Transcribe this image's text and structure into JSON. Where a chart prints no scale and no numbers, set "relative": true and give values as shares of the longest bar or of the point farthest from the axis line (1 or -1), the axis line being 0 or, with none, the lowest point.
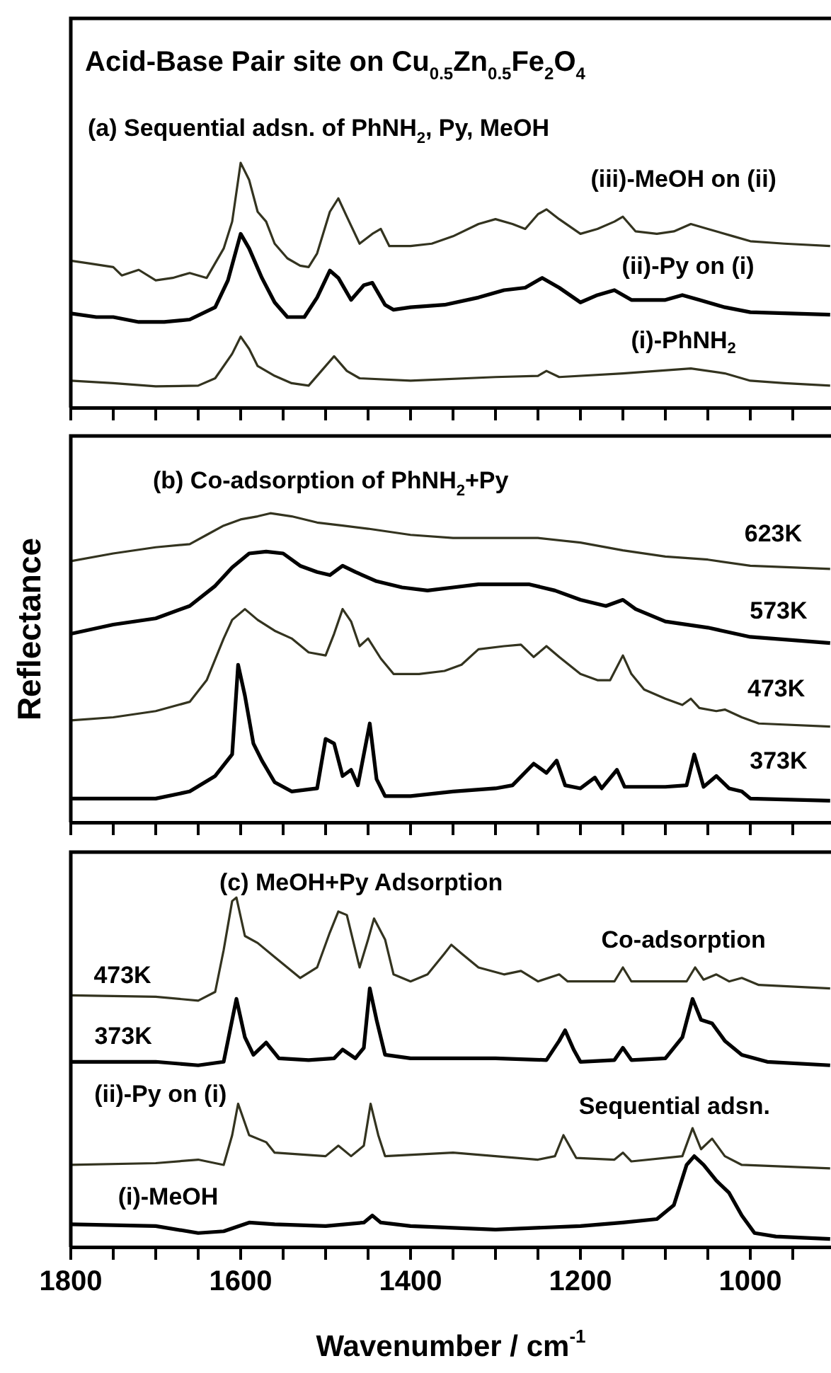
{
  "chart_data": [
    {
      "type": "line",
      "title": "Acid-Base Pair site on Cu$_{0.5}$Zn$_{0.5}$Fe$_{2}$O$_{4}$",
      "subtitle": "(a) Sequential adsn. of PhNH$_{2}$, Py, MeOH",
      "relative": true,
      "tick_labels": false,
      "xlim": [
        1800,
        905
      ],
      "xticks": [
        {
          "value": 1800,
          "label": null
        },
        {
          "value": 1750,
          "label": null
        },
        {
          "value": 1700,
          "label": null
        },
        {
          "value": 1650,
          "label": null
        },
        {
          "value": 1600,
          "label": null
        },
        {
          "value": 1550,
          "label": null
        },
        {
          "value": 1500,
          "label": null
        },
        {
          "value": 1450,
          "label": null
        },
        {
          "value": 1400,
          "label": null
        },
        {
          "value": 1350,
          "label": null
        },
        {
          "value": 1300,
          "label": null
        },
        {
          "value": 1250,
          "label": null
        },
        {
          "value": 1200,
          "label": null
        },
        {
          "value": 1150,
          "label": null
        },
        {
          "value": 1100,
          "label": null
        },
        {
          "value": 1050,
          "label": null
        },
        {
          "value": 1000,
          "label": null
        },
        {
          "value": 950,
          "label": null
        }
      ],
      "series": [
        {
          "name": "(iii)-MeOH on (ii)",
          "color": "#33331f",
          "x": [
            1800,
            1780,
            1750,
            1740,
            1720,
            1700,
            1680,
            1660,
            1640,
            1620,
            1610,
            1600,
            1590,
            1580,
            1570,
            1560,
            1545,
            1530,
            1520,
            1510,
            1495,
            1485,
            1475,
            1460,
            1445,
            1435,
            1425,
            1400,
            1375,
            1350,
            1320,
            1300,
            1280,
            1265,
            1250,
            1240,
            1225,
            1200,
            1180,
            1160,
            1150,
            1135,
            1110,
            1090,
            1070,
            1050,
            1020,
            1000,
            960,
            906
          ],
          "values": [
            0.6,
            0.59,
            0.574,
            0.54,
            0.563,
            0.52,
            0.53,
            0.55,
            0.53,
            0.65,
            0.76,
            1.0,
            0.93,
            0.8,
            0.76,
            0.67,
            0.61,
            0.58,
            0.574,
            0.63,
            0.8,
            0.855,
            0.78,
            0.67,
            0.71,
            0.73,
            0.66,
            0.66,
            0.67,
            0.7,
            0.75,
            0.77,
            0.75,
            0.73,
            0.79,
            0.81,
            0.77,
            0.71,
            0.73,
            0.76,
            0.78,
            0.72,
            0.71,
            0.72,
            0.75,
            0.73,
            0.7,
            0.68,
            0.67,
            0.66
          ]
        },
        {
          "name": "(ii)-Py on (i)",
          "color": "#000000",
          "x": [
            1800,
            1770,
            1750,
            1720,
            1690,
            1660,
            1630,
            1615,
            1600,
            1590,
            1575,
            1560,
            1545,
            1525,
            1510,
            1495,
            1485,
            1470,
            1455,
            1445,
            1430,
            1420,
            1400,
            1360,
            1320,
            1290,
            1265,
            1245,
            1225,
            1200,
            1180,
            1160,
            1140,
            1100,
            1080,
            1060,
            1030,
            1000,
            906
          ],
          "values": [
            0.385,
            0.37,
            0.37,
            0.35,
            0.35,
            0.36,
            0.41,
            0.52,
            0.71,
            0.65,
            0.53,
            0.43,
            0.37,
            0.37,
            0.45,
            0.56,
            0.53,
            0.44,
            0.5,
            0.51,
            0.42,
            0.4,
            0.41,
            0.42,
            0.45,
            0.48,
            0.49,
            0.53,
            0.49,
            0.43,
            0.46,
            0.48,
            0.44,
            0.44,
            0.46,
            0.44,
            0.41,
            0.39,
            0.38
          ]
        },
        {
          "name": "(i)-PhNH$_{2}$",
          "color": "#33331f",
          "x": [
            1800,
            1750,
            1700,
            1650,
            1630,
            1610,
            1600,
            1590,
            1580,
            1560,
            1540,
            1520,
            1505,
            1490,
            1475,
            1460,
            1400,
            1300,
            1250,
            1240,
            1225,
            1150,
            1070,
            1030,
            1000,
            960,
            906
          ],
          "values": [
            0.11,
            0.1,
            0.087,
            0.09,
            0.12,
            0.22,
            0.29,
            0.24,
            0.17,
            0.13,
            0.1,
            0.09,
            0.15,
            0.21,
            0.15,
            0.12,
            0.11,
            0.125,
            0.13,
            0.15,
            0.125,
            0.14,
            0.16,
            0.14,
            0.11,
            0.1,
            0.09
          ]
        }
      ],
      "legend": false
    },
    {
      "type": "line",
      "title": "(b) Co-adsorption of PhNH$_{2}$+Py",
      "ylabel": "Reflectance",
      "relative": true,
      "tick_labels": false,
      "xlim": [
        1800,
        905
      ],
      "xticks": [
        {
          "value": 1800,
          "label": null
        },
        {
          "value": 1750,
          "label": null
        },
        {
          "value": 1700,
          "label": null
        },
        {
          "value": 1650,
          "label": null
        },
        {
          "value": 1600,
          "label": null
        },
        {
          "value": 1550,
          "label": null
        },
        {
          "value": 1500,
          "label": null
        },
        {
          "value": 1450,
          "label": null
        },
        {
          "value": 1400,
          "label": null
        },
        {
          "value": 1350,
          "label": null
        },
        {
          "value": 1300,
          "label": null
        },
        {
          "value": 1250,
          "label": null
        },
        {
          "value": 1200,
          "label": null
        },
        {
          "value": 1150,
          "label": null
        },
        {
          "value": 1100,
          "label": null
        },
        {
          "value": 1050,
          "label": null
        },
        {
          "value": 1000,
          "label": null
        },
        {
          "value": 950,
          "label": null
        }
      ],
      "series": [
        {
          "name": "623K",
          "color": "#33331f",
          "x": [
            1800,
            1750,
            1700,
            1660,
            1640,
            1620,
            1600,
            1580,
            1565,
            1540,
            1510,
            1480,
            1450,
            1400,
            1350,
            1300,
            1250,
            1200,
            1150,
            1100,
            1050,
            1000,
            906
          ],
          "values": [
            0.845,
            0.87,
            0.89,
            0.9,
            0.93,
            0.96,
            0.98,
            0.99,
            1.0,
            0.99,
            0.97,
            0.96,
            0.95,
            0.93,
            0.92,
            0.92,
            0.92,
            0.905,
            0.88,
            0.86,
            0.85,
            0.83,
            0.82
          ]
        },
        {
          "name": "573K",
          "color": "#000000",
          "x": [
            1800,
            1750,
            1700,
            1660,
            1630,
            1610,
            1590,
            1570,
            1550,
            1530,
            1510,
            1495,
            1480,
            1465,
            1440,
            1410,
            1380,
            1350,
            1320,
            1290,
            1260,
            1230,
            1200,
            1170,
            1150,
            1135,
            1100,
            1050,
            1000,
            906
          ],
          "values": [
            0.61,
            0.64,
            0.66,
            0.7,
            0.765,
            0.825,
            0.87,
            0.876,
            0.87,
            0.83,
            0.81,
            0.8,
            0.83,
            0.81,
            0.78,
            0.76,
            0.75,
            0.76,
            0.77,
            0.77,
            0.77,
            0.75,
            0.72,
            0.7,
            0.72,
            0.69,
            0.65,
            0.63,
            0.6,
            0.58
          ]
        },
        {
          "name": "473K",
          "color": "#33331f",
          "x": [
            1800,
            1750,
            1700,
            1660,
            1640,
            1620,
            1610,
            1595,
            1580,
            1560,
            1540,
            1520,
            1500,
            1490,
            1480,
            1470,
            1460,
            1450,
            1435,
            1420,
            1390,
            1360,
            1340,
            1320,
            1290,
            1270,
            1255,
            1240,
            1225,
            1200,
            1180,
            1165,
            1150,
            1140,
            1125,
            1100,
            1080,
            1070,
            1060,
            1040,
            1030,
            1010,
            990,
            906
          ],
          "values": [
            0.33,
            0.34,
            0.36,
            0.39,
            0.46,
            0.595,
            0.655,
            0.69,
            0.655,
            0.62,
            0.595,
            0.55,
            0.54,
            0.61,
            0.69,
            0.65,
            0.57,
            0.595,
            0.53,
            0.48,
            0.48,
            0.49,
            0.51,
            0.56,
            0.57,
            0.575,
            0.535,
            0.57,
            0.535,
            0.48,
            0.46,
            0.46,
            0.54,
            0.48,
            0.43,
            0.4,
            0.38,
            0.4,
            0.37,
            0.36,
            0.365,
            0.34,
            0.32,
            0.31
          ]
        },
        {
          "name": "373K",
          "color": "#000000",
          "x": [
            1800,
            1700,
            1660,
            1630,
            1610,
            1603,
            1595,
            1585,
            1575,
            1560,
            1540,
            1510,
            1500,
            1490,
            1480,
            1470,
            1462,
            1448,
            1440,
            1430,
            1400,
            1350,
            1300,
            1280,
            1255,
            1240,
            1228,
            1218,
            1200,
            1183,
            1175,
            1157,
            1148,
            1100,
            1075,
            1066,
            1055,
            1040,
            1025,
            1010,
            1000,
            906
          ],
          "values": [
            0.077,
            0.077,
            0.1,
            0.15,
            0.22,
            0.51,
            0.41,
            0.255,
            0.2,
            0.13,
            0.1,
            0.11,
            0.27,
            0.255,
            0.15,
            0.17,
            0.12,
            0.32,
            0.14,
            0.085,
            0.085,
            0.1,
            0.11,
            0.12,
            0.19,
            0.16,
            0.2,
            0.12,
            0.11,
            0.145,
            0.11,
            0.17,
            0.115,
            0.115,
            0.12,
            0.22,
            0.115,
            0.15,
            0.11,
            0.1,
            0.077,
            0.07
          ]
        }
      ],
      "legend": false
    },
    {
      "type": "line",
      "title": "(c) MeOH+Py Adsorption",
      "xlabel": "Wavenumber / cm$^{-1}$",
      "relative": true,
      "tick_labels": "x",
      "xlim": [
        1800,
        905
      ],
      "xticks": [
        1800,
        {
          "value": 1750,
          "label": null
        },
        {
          "value": 1700,
          "label": null
        },
        {
          "value": 1650,
          "label": null
        },
        1600,
        {
          "value": 1550,
          "label": null
        },
        {
          "value": 1500,
          "label": null
        },
        {
          "value": 1450,
          "label": null
        },
        1400,
        {
          "value": 1350,
          "label": null
        },
        {
          "value": 1300,
          "label": null
        },
        {
          "value": 1250,
          "label": null
        },
        1200,
        {
          "value": 1150,
          "label": null
        },
        {
          "value": 1100,
          "label": null
        },
        {
          "value": 1050,
          "label": null
        },
        1000,
        {
          "value": 950,
          "label": null
        }
      ],
      "series": [
        {
          "name": "473K",
          "color": "#33331f",
          "x": [
            1800,
            1700,
            1650,
            1630,
            1620,
            1610,
            1605,
            1595,
            1580,
            1560,
            1545,
            1530,
            1510,
            1495,
            1485,
            1475,
            1460,
            1450,
            1443,
            1430,
            1420,
            1400,
            1380,
            1360,
            1352,
            1340,
            1320,
            1290,
            1270,
            1250,
            1225,
            1215,
            1160,
            1150,
            1140,
            1075,
            1065,
            1055,
            1040,
            1025,
            1010,
            990,
            906
          ],
          "values": [
            0.72,
            0.716,
            0.705,
            0.73,
            0.85,
            0.99,
            1.0,
            0.89,
            0.87,
            0.83,
            0.8,
            0.77,
            0.8,
            0.9,
            0.96,
            0.95,
            0.8,
            0.88,
            0.94,
            0.88,
            0.78,
            0.76,
            0.78,
            0.84,
            0.865,
            0.84,
            0.8,
            0.78,
            0.79,
            0.76,
            0.78,
            0.76,
            0.76,
            0.8,
            0.76,
            0.76,
            0.8,
            0.765,
            0.78,
            0.76,
            0.77,
            0.75,
            0.74
          ]
        },
        {
          "name": "373K",
          "color": "#000000",
          "x": [
            1800,
            1700,
            1650,
            1620,
            1610,
            1605,
            1595,
            1585,
            1570,
            1555,
            1520,
            1490,
            1480,
            1465,
            1455,
            1448,
            1440,
            1430,
            1400,
            1300,
            1240,
            1225,
            1218,
            1208,
            1200,
            1160,
            1150,
            1140,
            1100,
            1080,
            1068,
            1058,
            1045,
            1030,
            1010,
            980,
            906
          ],
          "values": [
            0.53,
            0.53,
            0.52,
            0.53,
            0.65,
            0.71,
            0.6,
            0.55,
            0.585,
            0.54,
            0.535,
            0.54,
            0.565,
            0.54,
            0.57,
            0.74,
            0.65,
            0.55,
            0.54,
            0.54,
            0.535,
            0.59,
            0.62,
            0.565,
            0.53,
            0.535,
            0.57,
            0.535,
            0.54,
            0.6,
            0.71,
            0.65,
            0.64,
            0.59,
            0.55,
            0.53,
            0.52
          ]
        },
        {
          "name": "(ii)-Py on (i)",
          "color": "#33331f",
          "x": [
            1800,
            1700,
            1650,
            1620,
            1610,
            1603,
            1590,
            1570,
            1560,
            1500,
            1485,
            1470,
            1455,
            1447,
            1438,
            1430,
            1350,
            1250,
            1230,
            1220,
            1205,
            1160,
            1150,
            1140,
            1080,
            1068,
            1058,
            1045,
            1030,
            1010,
            906
          ],
          "values": [
            0.235,
            0.24,
            0.25,
            0.235,
            0.32,
            0.41,
            0.32,
            0.3,
            0.27,
            0.26,
            0.29,
            0.26,
            0.29,
            0.41,
            0.32,
            0.26,
            0.27,
            0.25,
            0.26,
            0.32,
            0.255,
            0.25,
            0.27,
            0.245,
            0.26,
            0.34,
            0.28,
            0.31,
            0.26,
            0.235,
            0.225
          ]
        },
        {
          "name": "(i)-MeOH",
          "color": "#000000",
          "x": [
            1800,
            1700,
            1650,
            1620,
            1590,
            1560,
            1500,
            1455,
            1445,
            1435,
            1400,
            1300,
            1200,
            1150,
            1110,
            1090,
            1075,
            1066,
            1055,
            1040,
            1025,
            1010,
            995,
            970,
            906
          ],
          "values": [
            0.065,
            0.06,
            0.04,
            0.045,
            0.07,
            0.065,
            0.06,
            0.07,
            0.09,
            0.07,
            0.06,
            0.05,
            0.06,
            0.07,
            0.08,
            0.12,
            0.235,
            0.26,
            0.235,
            0.19,
            0.155,
            0.09,
            0.04,
            0.03,
            0.023
          ]
        }
      ],
      "legend": false,
      "annotations": [
        "Co-adsorption",
        "Sequential adsn."
      ]
    }
  ]
}
